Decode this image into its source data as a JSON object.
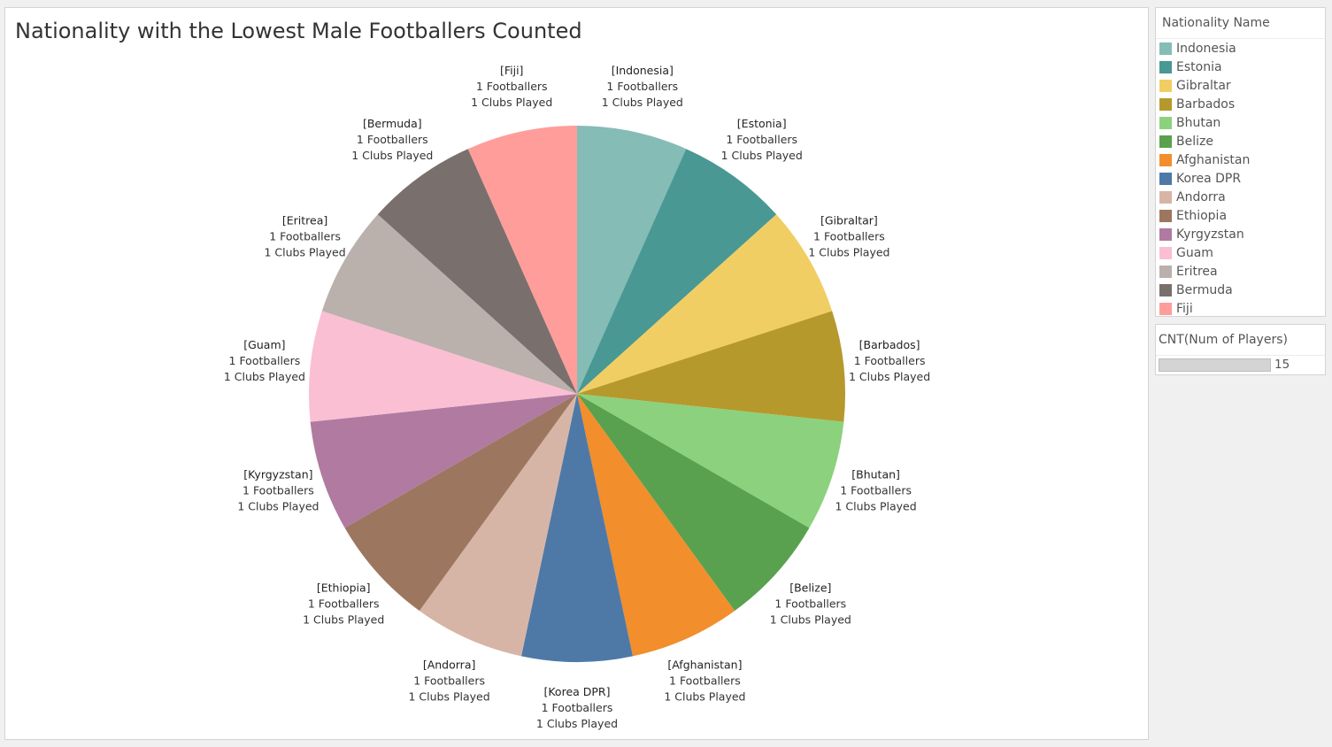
{
  "title": "Nationality with the Lowest Male Footballers Counted",
  "legend": {
    "title": "Nationality Name",
    "items": [
      {
        "label": "Indonesia",
        "color": "#86bcb6"
      },
      {
        "label": "Estonia",
        "color": "#499894"
      },
      {
        "label": "Gibraltar",
        "color": "#f1ce63"
      },
      {
        "label": "Barbados",
        "color": "#b6992d"
      },
      {
        "label": "Bhutan",
        "color": "#8cd17d"
      },
      {
        "label": "Belize",
        "color": "#59a14f"
      },
      {
        "label": "Afghanistan",
        "color": "#f28e2b"
      },
      {
        "label": "Korea DPR",
        "color": "#4e79a7"
      },
      {
        "label": "Andorra",
        "color": "#d7b5a6"
      },
      {
        "label": "Ethiopia",
        "color": "#9d7660"
      },
      {
        "label": "Kyrgyzstan",
        "color": "#b07aa1"
      },
      {
        "label": "Guam",
        "color": "#fabfd2"
      },
      {
        "label": "Eritrea",
        "color": "#bab0ac"
      },
      {
        "label": "Bermuda",
        "color": "#79706e"
      },
      {
        "label": "Fiji",
        "color": "#ff9d9a"
      }
    ]
  },
  "size_legend": {
    "title": "CNT(Num of Players)",
    "value": "15"
  },
  "chart_data": {
    "type": "pie",
    "title": "Nationality with the Lowest Male Footballers Counted",
    "slices": [
      {
        "name": "Indonesia",
        "label": "[Indonesia]",
        "value": 1,
        "footballers": "1 Footballers",
        "clubs": "1 Clubs Played",
        "color": "#86bcb6"
      },
      {
        "name": "Estonia",
        "label": "[Estonia]",
        "value": 1,
        "footballers": "1 Footballers",
        "clubs": "1 Clubs Played",
        "color": "#499894"
      },
      {
        "name": "Gibraltar",
        "label": "[Gibraltar]",
        "value": 1,
        "footballers": "1 Footballers",
        "clubs": "1 Clubs Played",
        "color": "#f1ce63"
      },
      {
        "name": "Barbados",
        "label": "[Barbados]",
        "value": 1,
        "footballers": "1 Footballers",
        "clubs": "1 Clubs Played",
        "color": "#b6992d"
      },
      {
        "name": "Bhutan",
        "label": "[Bhutan]",
        "value": 1,
        "footballers": "1 Footballers",
        "clubs": "1 Clubs Played",
        "color": "#8cd17d"
      },
      {
        "name": "Belize",
        "label": "[Belize]",
        "value": 1,
        "footballers": "1 Footballers",
        "clubs": "1 Clubs Played",
        "color": "#59a14f"
      },
      {
        "name": "Afghanistan",
        "label": "[Afghanistan]",
        "value": 1,
        "footballers": "1 Footballers",
        "clubs": "1 Clubs Played",
        "color": "#f28e2b"
      },
      {
        "name": "Korea DPR",
        "label": "[Korea DPR]",
        "value": 1,
        "footballers": "1 Footballers",
        "clubs": "1 Clubs Played",
        "color": "#4e79a7"
      },
      {
        "name": "Andorra",
        "label": "[Andorra]",
        "value": 1,
        "footballers": "1 Footballers",
        "clubs": "1 Clubs Played",
        "color": "#d7b5a6"
      },
      {
        "name": "Ethiopia",
        "label": "[Ethiopia]",
        "value": 1,
        "footballers": "1 Footballers",
        "clubs": "1 Clubs Played",
        "color": "#9d7660"
      },
      {
        "name": "Kyrgyzstan",
        "label": "[Kyrgyzstan]",
        "value": 1,
        "footballers": "1 Footballers",
        "clubs": "1 Clubs Played",
        "color": "#b07aa1"
      },
      {
        "name": "Guam",
        "label": "[Guam]",
        "value": 1,
        "footballers": "1 Footballers",
        "clubs": "1 Clubs Played",
        "color": "#fabfd2"
      },
      {
        "name": "Eritrea",
        "label": "[Eritrea]",
        "value": 1,
        "footballers": "1 Footballers",
        "clubs": "1 Clubs Played",
        "color": "#bab0ac"
      },
      {
        "name": "Bermuda",
        "label": "[Bermuda]",
        "value": 1,
        "footballers": "1 Footballers",
        "clubs": "1 Clubs Played",
        "color": "#79706e"
      },
      {
        "name": "Fiji",
        "label": "[Fiji]",
        "value": 1,
        "footballers": "1 Footballers",
        "clubs": "1 Clubs Played",
        "color": "#ff9d9a"
      }
    ]
  }
}
